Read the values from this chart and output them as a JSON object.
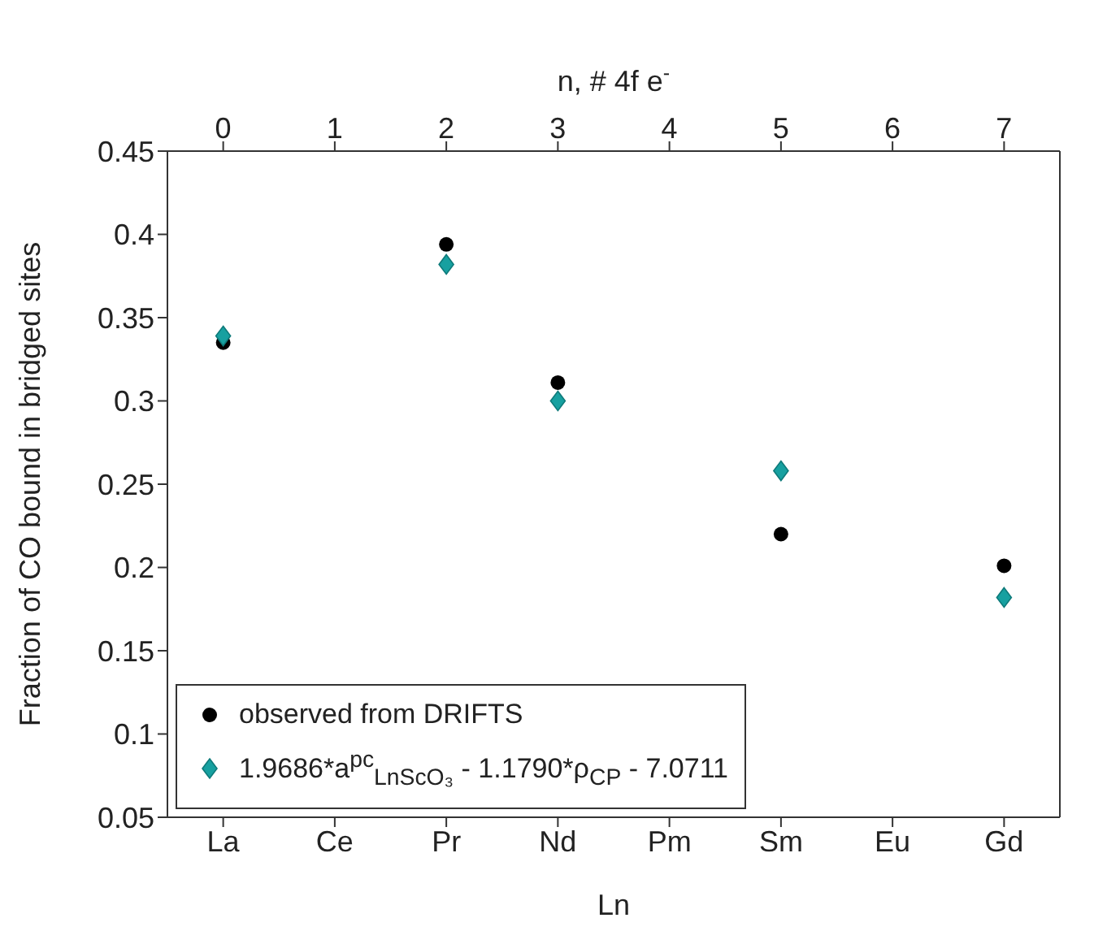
{
  "chart_data": {
    "type": "scatter",
    "categories": [
      "La",
      "Ce",
      "Pr",
      "Nd",
      "Pm",
      "Sm",
      "Eu",
      "Gd"
    ],
    "xlabel": "Ln",
    "ylabel": "Fraction of CO bound in bridged sites",
    "x2label": "n, # 4f e$^{-}$",
    "x2lim": [
      -0.5,
      7.5
    ],
    "x2ticks": [
      0,
      1,
      2,
      3,
      4,
      5,
      6,
      7
    ],
    "ylim": [
      0.05,
      0.45
    ],
    "yticks": [
      0.05,
      0.1,
      0.15,
      0.2,
      0.25,
      0.3,
      0.35,
      0.4,
      0.45
    ],
    "series": [
      {
        "name": "observed from DRIFTS",
        "color": "#000000",
        "marker": "circle",
        "values": [
          0.335,
          null,
          0.394,
          0.311,
          null,
          0.22,
          null,
          0.201
        ]
      },
      {
        "name": "1.9686*a$^{pc}$$_{LnScO₃}$ - 1.1790*ρ$_{CP}$ - 7.0711",
        "color": "#17a0a0",
        "marker": "diamond",
        "values": [
          0.339,
          null,
          0.382,
          0.3,
          null,
          0.258,
          null,
          0.182
        ]
      }
    ],
    "grid": false,
    "legend": "bottom left"
  }
}
